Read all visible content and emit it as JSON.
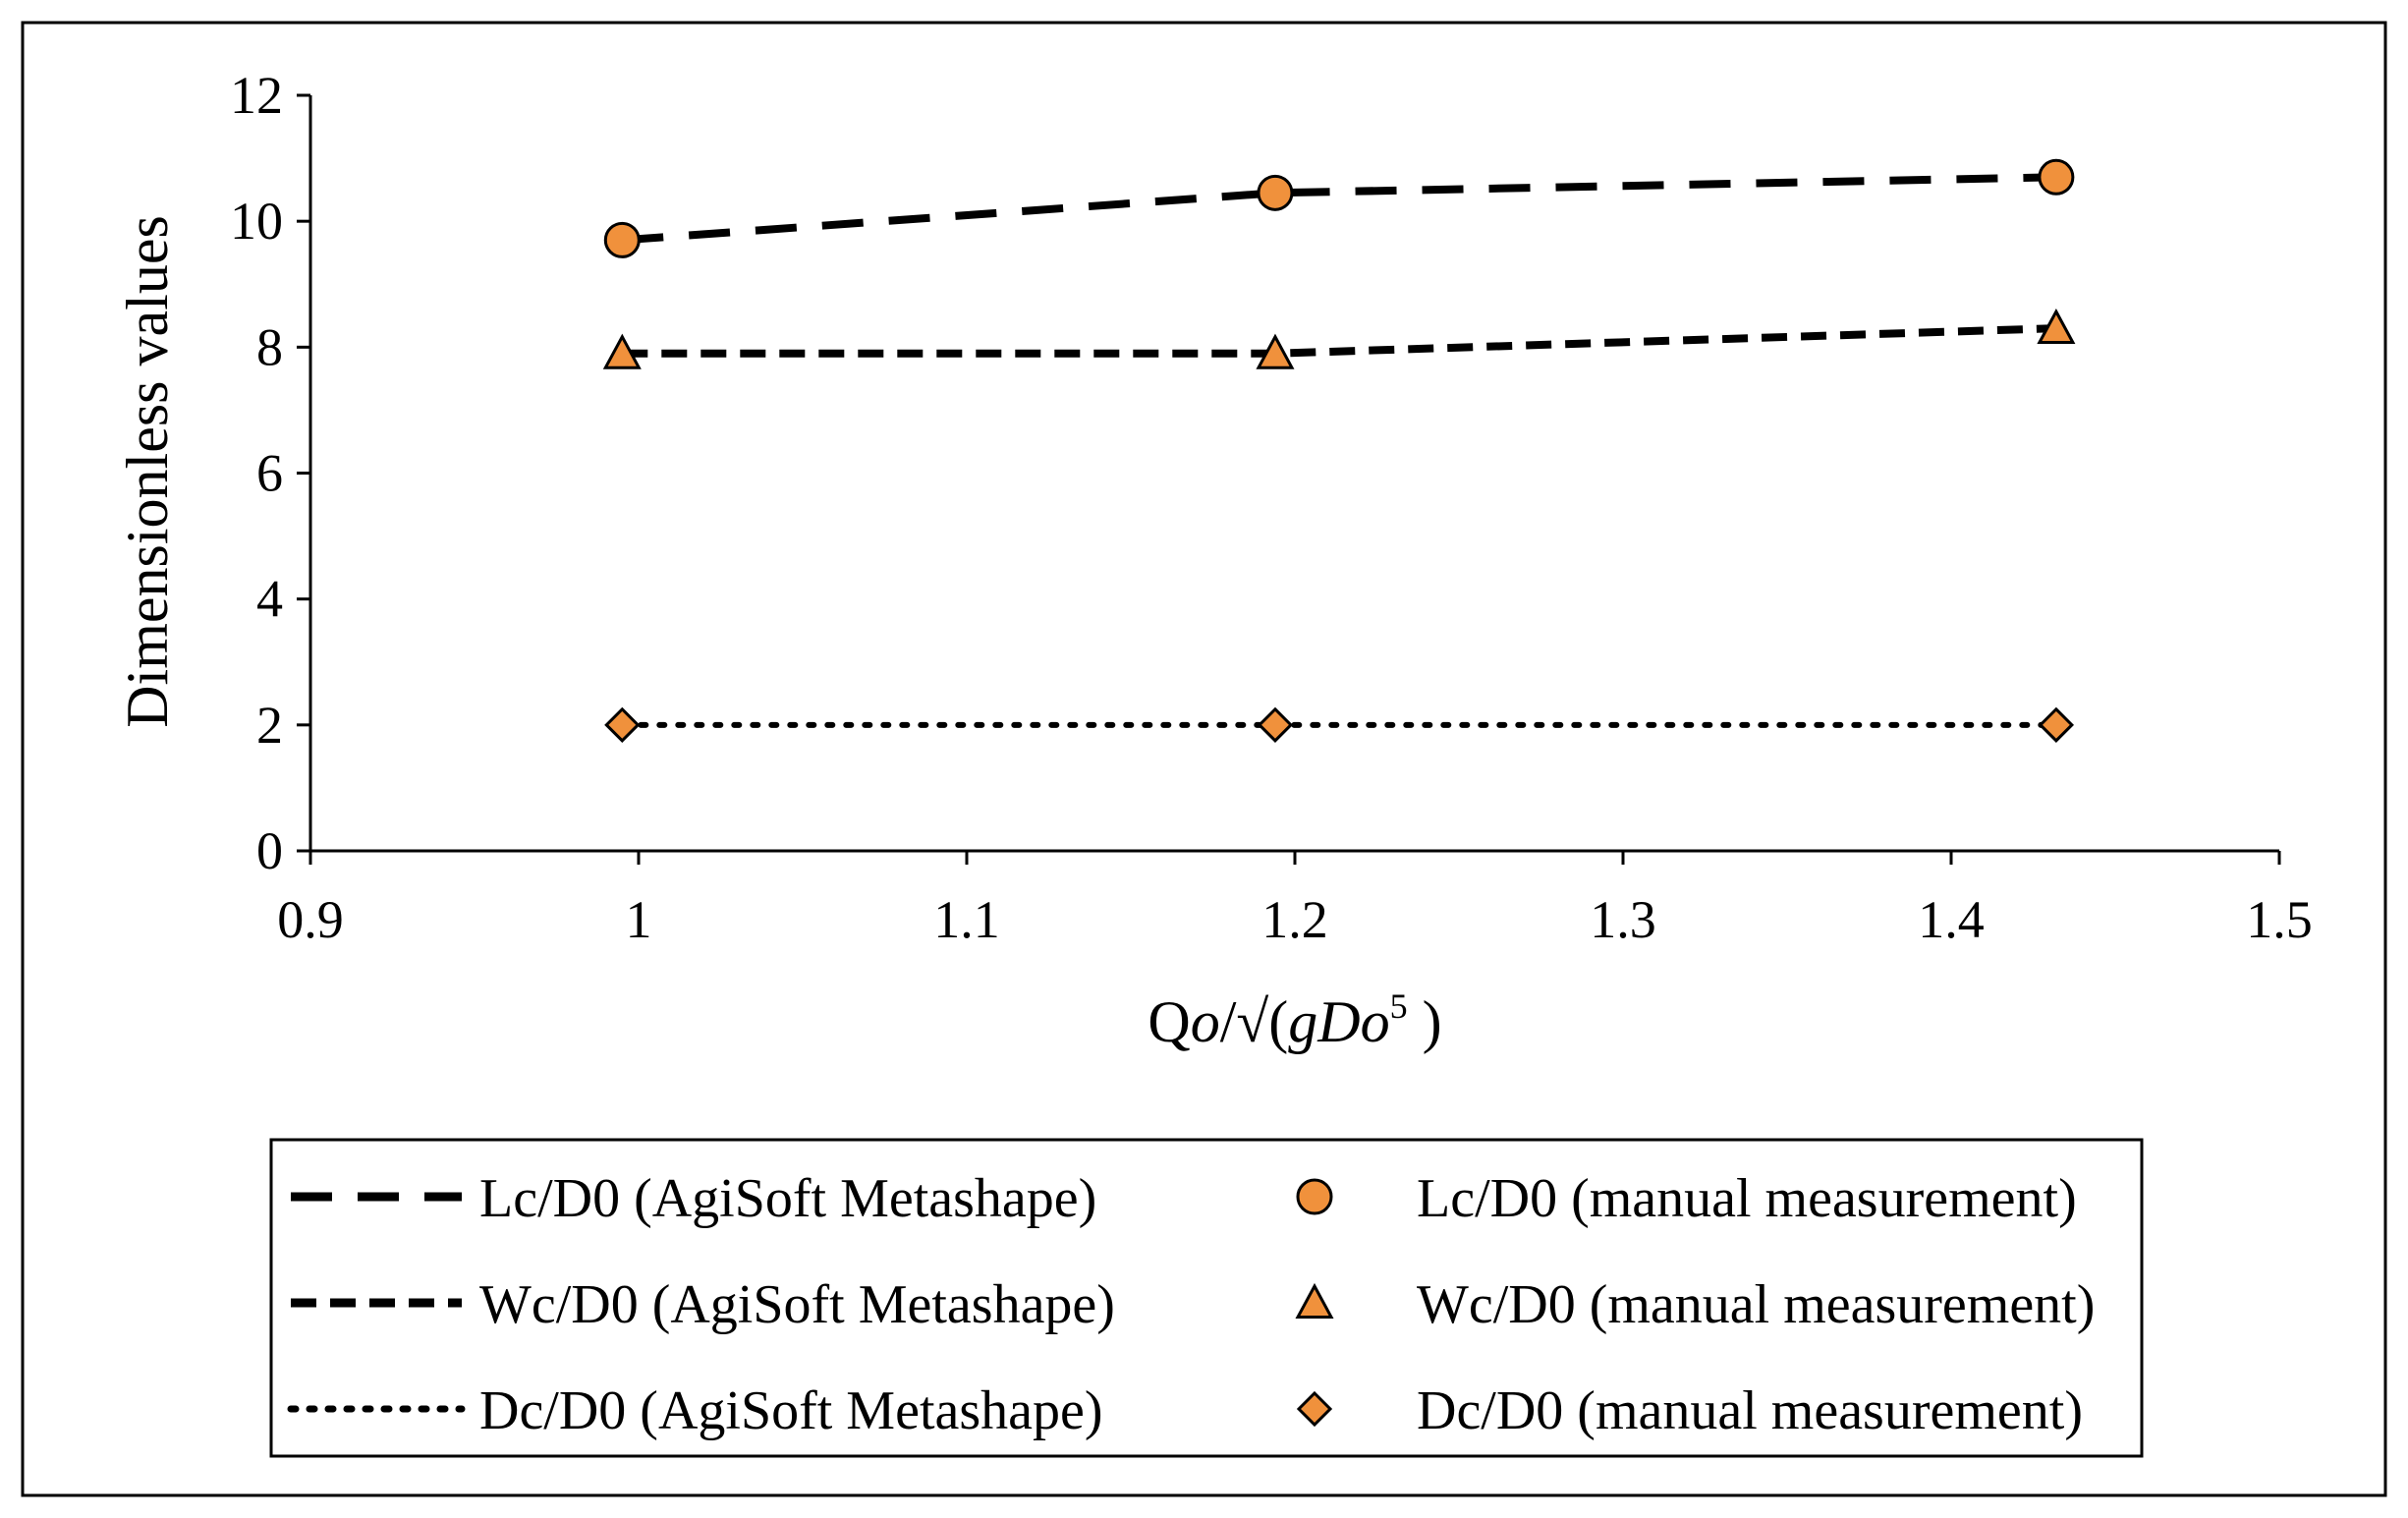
{
  "chart_data": {
    "type": "line",
    "title": "",
    "xlabel": "Qo/√(gDo⁵ )",
    "xlabel_parts": [
      "Q",
      "o",
      "/√(",
      "gDo",
      "5",
      " )"
    ],
    "ylabel": "Dimensionless values",
    "xlim": [
      0.9,
      1.5
    ],
    "ylim": [
      0,
      12
    ],
    "xticks": [
      0.9,
      1,
      1.1,
      1.2,
      1.3,
      1.4,
      1.5
    ],
    "xtick_labels": [
      "0.9",
      "1",
      "1.1",
      "1.2",
      "1.3",
      "1.4",
      "1.5"
    ],
    "yticks": [
      0,
      2,
      4,
      6,
      8,
      10,
      12
    ],
    "ytick_labels": [
      "0",
      "2",
      "4",
      "6",
      "8",
      "10",
      "12"
    ],
    "grid": false,
    "x": [
      0.995,
      1.194,
      1.432
    ],
    "series": [
      {
        "name": "Lc/D0 (AgiSoft Metashape)",
        "kind": "line",
        "style": "long-dash",
        "values": [
          9.7,
          10.45,
          10.7
        ]
      },
      {
        "name": "Wc/D0 (AgiSoft Metashape)",
        "kind": "line",
        "style": "dash",
        "values": [
          7.9,
          7.9,
          8.3
        ]
      },
      {
        "name": "Dc/D0  (AgiSoft Metashape)",
        "kind": "line",
        "style": "dot",
        "values": [
          2.0,
          2.0,
          2.0
        ]
      },
      {
        "name": "Lc/D0 (manual measurement)",
        "kind": "marker",
        "marker": "circle",
        "values": [
          9.7,
          10.45,
          10.7
        ]
      },
      {
        "name": "Wc/D0 (manual measurement)",
        "kind": "marker",
        "marker": "triangle",
        "values": [
          7.9,
          7.9,
          8.3
        ]
      },
      {
        "name": "Dc/D0 (manual measurement)",
        "kind": "marker",
        "marker": "diamond",
        "values": [
          2.0,
          2.0,
          2.0
        ]
      }
    ],
    "legend_position": "bottom",
    "colors": {
      "line": "#000000",
      "marker_fill": "#f0913c",
      "marker_edge": "#000000"
    }
  }
}
